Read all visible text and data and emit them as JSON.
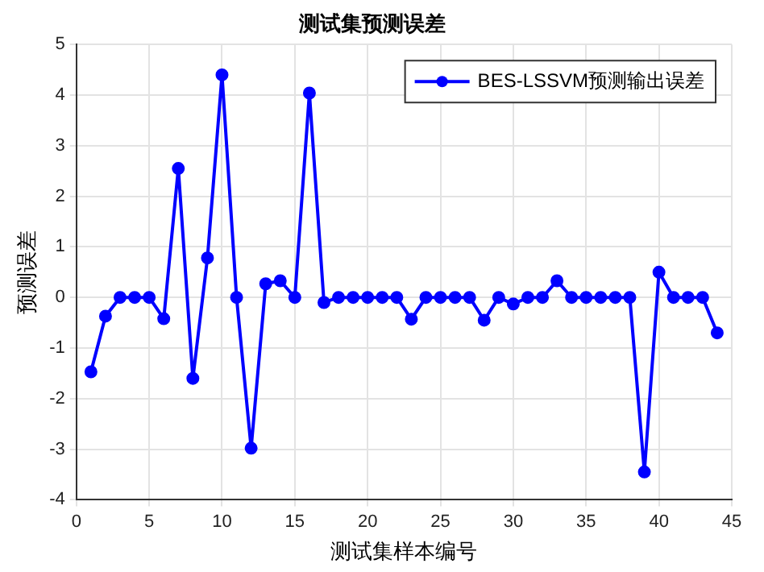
{
  "chart_data": {
    "type": "line",
    "title": "测试集预测误差",
    "xlabel": "测试集样本编号",
    "ylabel": "预测误差",
    "x": [
      1,
      2,
      3,
      4,
      5,
      6,
      7,
      8,
      9,
      10,
      11,
      12,
      13,
      14,
      15,
      16,
      17,
      18,
      19,
      20,
      21,
      22,
      23,
      24,
      25,
      26,
      27,
      28,
      29,
      30,
      31,
      32,
      33,
      34,
      35,
      36,
      37,
      38,
      39,
      40,
      41,
      42,
      43,
      44
    ],
    "series": [
      {
        "name": "BES-LSSVM预测输出误差",
        "color": "#0000ff",
        "values": [
          -1.47,
          -0.37,
          0,
          0,
          0,
          -0.42,
          2.55,
          -1.6,
          0.78,
          4.4,
          0,
          -2.98,
          0.27,
          0.33,
          0,
          4.04,
          -0.1,
          0,
          0,
          0,
          0,
          0,
          -0.43,
          0,
          0,
          0,
          0,
          -0.45,
          0,
          -0.13,
          0,
          0,
          0.33,
          0,
          0,
          0,
          0,
          0,
          -3.45,
          0.5,
          0,
          0,
          0,
          -0.7
        ]
      }
    ],
    "xlim": [
      0,
      45
    ],
    "xticks": [
      0,
      5,
      10,
      15,
      20,
      25,
      30,
      35,
      40,
      45
    ],
    "ylim": [
      -4,
      5
    ],
    "yticks": [
      -4,
      -3,
      -2,
      -1,
      0,
      1,
      2,
      3,
      4,
      5
    ],
    "grid": true,
    "legend": "top right",
    "marker": "circle",
    "line_style": "solid"
  }
}
